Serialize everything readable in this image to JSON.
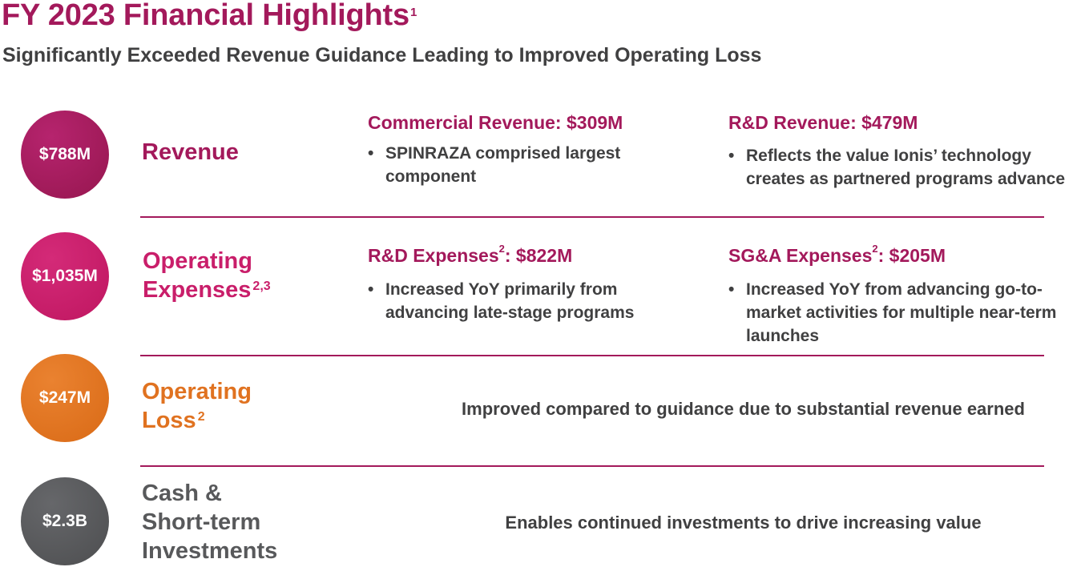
{
  "header": {
    "title": "FY 2023 Financial Highlights",
    "title_footnote": "1",
    "subtitle": "Significantly Exceeded Revenue Guidance Leading to Improved Operating Loss"
  },
  "rows": {
    "revenue": {
      "amount": "$788M",
      "label": "Revenue",
      "col1": {
        "heading": "Commercial Revenue: $309M",
        "bullet": "SPINRAZA comprised largest component"
      },
      "col2": {
        "heading": "R&D Revenue: $479M",
        "bullet": "Reflects the value Ionis’ technology creates as partnered programs advance"
      }
    },
    "opex": {
      "amount": "$1,035M",
      "label_line1": "Operating",
      "label_line2": "Expenses",
      "label_footnote": "2,3",
      "col1": {
        "heading_pre": "R&D Expenses",
        "heading_footnote": "2",
        "heading_post": ": $822M",
        "bullet": "Increased YoY primarily from advancing late-stage programs"
      },
      "col2": {
        "heading_pre": "SG&A Expenses",
        "heading_footnote": "2",
        "heading_post": ": $205M",
        "bullet": "Increased YoY from advancing go-to-market activities for multiple near-term launches"
      }
    },
    "oploss": {
      "amount": "$247M",
      "label_line1": "Operating",
      "label_line2": "Loss",
      "label_footnote": "2",
      "description": "Improved compared to guidance due to substantial revenue earned"
    },
    "cash": {
      "amount": "$2.3B",
      "label_line1": "Cash &",
      "label_line2": "Short-term",
      "label_line3": "Investments",
      "description": "Enables continued investments to drive increasing value"
    }
  },
  "bullet_symbol": "•",
  "colors": {
    "magenta": "#a3195b",
    "pink": "#c91e6a",
    "orange": "#e07220",
    "gray": "#58595b",
    "text": "#404041"
  }
}
